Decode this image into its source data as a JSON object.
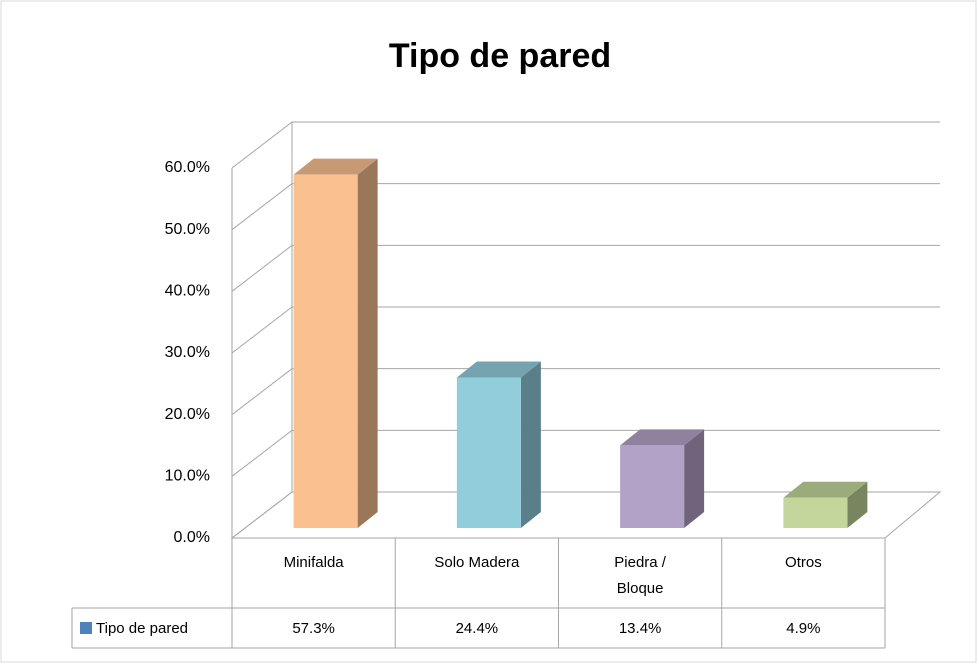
{
  "chart_data": {
    "type": "bar",
    "title": "Tipo de pared",
    "categories": [
      "Minifalda",
      "Solo Madera",
      "Piedra / Bloque",
      "Otros"
    ],
    "series": [
      {
        "name": "Tipo de pared",
        "color": "#4f81bd",
        "colors": [
          "#fac090",
          "#92cddc",
          "#b3a2c7",
          "#c3d69b"
        ],
        "values": [
          57.3,
          24.4,
          13.4,
          4.9
        ],
        "value_labels": [
          "57.3%",
          "24.4%",
          "13.4%",
          "4.9%"
        ]
      }
    ],
    "ylim": [
      0,
      60
    ],
    "yticks": [
      {
        "value": 0,
        "label": "0.0%"
      },
      {
        "value": 10,
        "label": "10.0%"
      },
      {
        "value": 20,
        "label": "20.0%"
      },
      {
        "value": 30,
        "label": "30.0%"
      },
      {
        "value": 40,
        "label": "40.0%"
      },
      {
        "value": 50,
        "label": "50.0%"
      },
      {
        "value": 60,
        "label": "60.0%"
      }
    ],
    "grid": true
  }
}
